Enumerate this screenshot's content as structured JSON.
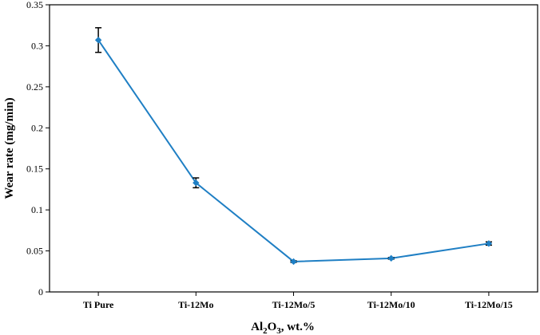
{
  "chart_data": {
    "type": "line",
    "categories": [
      "Ti Pure",
      "Ti-12Mo",
      "Ti-12Mo/5",
      "Ti-12Mo/10",
      "Ti-12Mo/15"
    ],
    "series": [
      {
        "values": [
          0.307,
          0.133,
          0.037,
          0.041,
          0.059
        ],
        "errors": [
          0.015,
          0.006,
          0.001,
          0.001,
          0.002
        ],
        "color": "#1f7fc4"
      }
    ],
    "ylabel": "Wear rate (mg/min)",
    "xlabel": {
      "prefix": "Al",
      "sub1": "2",
      "mid": "O",
      "sub2": "3",
      "suffix": ", wt.%"
    },
    "ylim": [
      0,
      0.35
    ],
    "yticks": [
      "0",
      "0.05",
      "0.1",
      "0.15",
      "0.2",
      "0.25",
      "0.3",
      "0.35"
    ],
    "grid": false,
    "legend": "none"
  }
}
